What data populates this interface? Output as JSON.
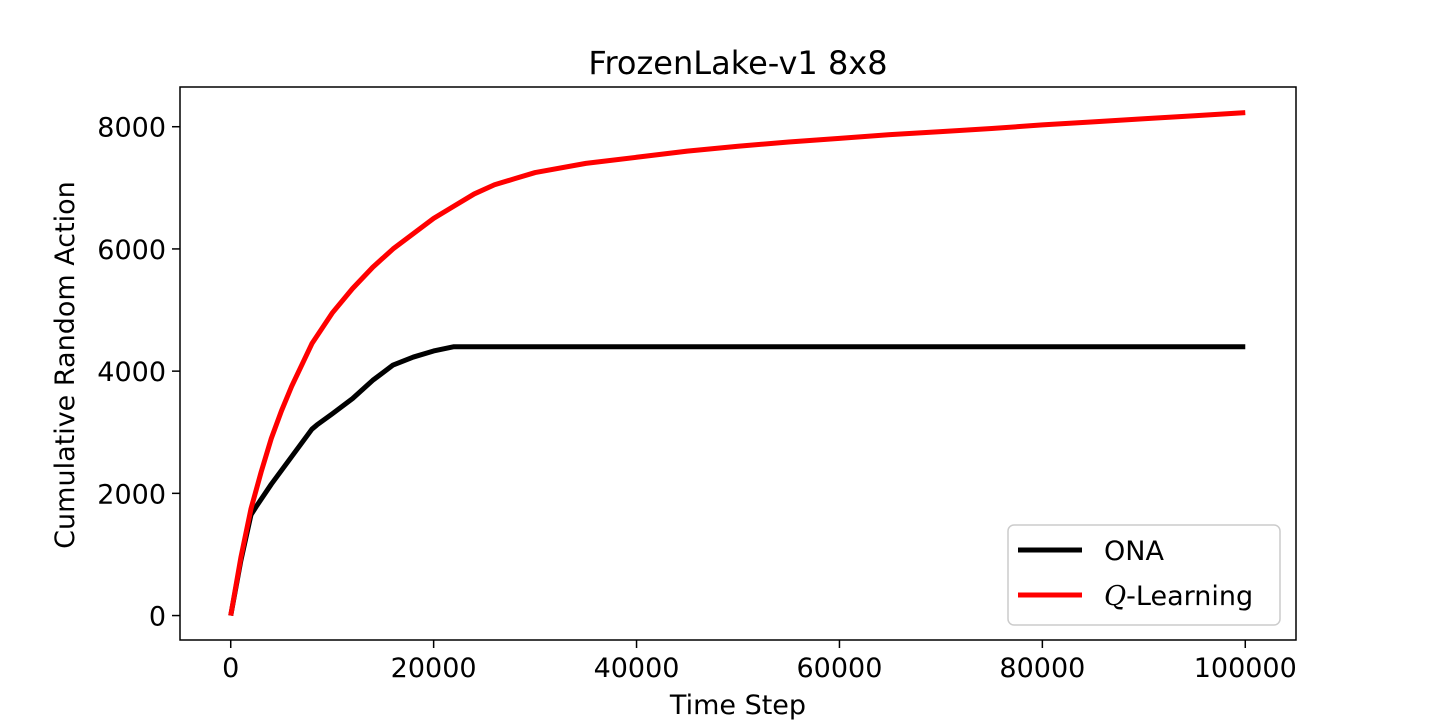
{
  "chart_data": {
    "type": "line",
    "title": "FrozenLake-v1 8x8",
    "xlabel": "Time Step",
    "ylabel": "Cumulative Random Action",
    "xlim": [
      -5000,
      105000
    ],
    "ylim": [
      -400,
      8650
    ],
    "xticks": [
      0,
      20000,
      40000,
      60000,
      80000,
      100000
    ],
    "xtick_labels": [
      "0",
      "20000",
      "40000",
      "60000",
      "80000",
      "100000"
    ],
    "yticks": [
      0,
      2000,
      4000,
      6000,
      8000
    ],
    "ytick_labels": [
      "0",
      "2000",
      "4000",
      "6000",
      "8000"
    ],
    "grid": false,
    "legend_position": "lower right",
    "series": [
      {
        "name": "ONA",
        "legend_prefix": "",
        "legend_suffix": "ONA",
        "color": "#000000",
        "x": [
          0,
          1000,
          2000,
          2500,
          4000,
          6000,
          8000,
          8500,
          10000,
          12000,
          14000,
          16000,
          18000,
          20000,
          22000,
          30000,
          40000,
          50000,
          60000,
          70000,
          80000,
          90000,
          100000
        ],
        "y": [
          0,
          900,
          1650,
          1780,
          2150,
          2600,
          3050,
          3120,
          3300,
          3550,
          3850,
          4100,
          4230,
          4330,
          4400,
          4400,
          4400,
          4400,
          4400,
          4400,
          4400,
          4400,
          4400
        ]
      },
      {
        "name": "Q-Learning",
        "legend_prefix": "Q",
        "legend_suffix": "-Learning",
        "color": "#ff0000",
        "x": [
          0,
          1000,
          2000,
          3000,
          4000,
          5000,
          6000,
          7000,
          8000,
          10000,
          12000,
          14000,
          16000,
          18000,
          20000,
          22000,
          24000,
          26000,
          28000,
          30000,
          35000,
          40000,
          45000,
          50000,
          55000,
          60000,
          65000,
          70000,
          75000,
          80000,
          85000,
          90000,
          95000,
          100000
        ],
        "y": [
          0,
          950,
          1750,
          2350,
          2900,
          3350,
          3750,
          4100,
          4450,
          4950,
          5350,
          5700,
          6000,
          6250,
          6500,
          6700,
          6900,
          7050,
          7150,
          7250,
          7400,
          7500,
          7600,
          7680,
          7750,
          7810,
          7870,
          7920,
          7970,
          8030,
          8080,
          8130,
          8180,
          8230
        ]
      }
    ]
  }
}
